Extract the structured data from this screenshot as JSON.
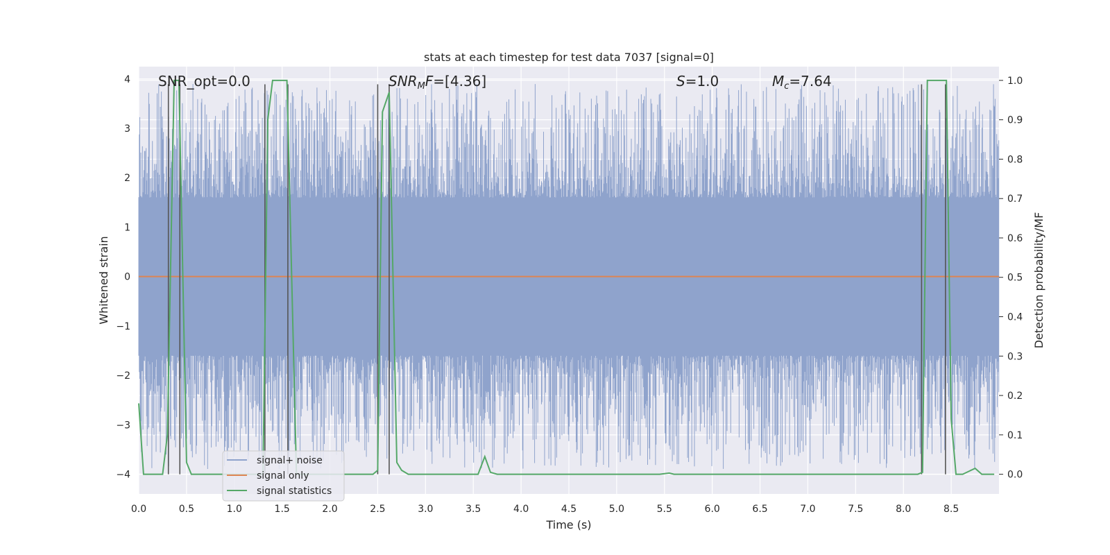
{
  "chart_data": {
    "type": "line",
    "title": "stats at each timestep for test data 7037 [signal=0]",
    "xlabel": "Time (s)",
    "ylabel_left": "Whitened strain",
    "ylabel_right": "Detection probability/MF",
    "xlim": [
      0.0,
      9.0
    ],
    "ylim_left": [
      -4.4,
      4.25
    ],
    "ylim_right": [
      -0.05,
      1.035
    ],
    "x_ticks": [
      0.0,
      0.5,
      1.0,
      1.5,
      2.0,
      2.5,
      3.0,
      3.5,
      4.0,
      4.5,
      5.0,
      5.5,
      6.0,
      6.5,
      7.0,
      7.5,
      8.0,
      8.5
    ],
    "x_tick_labels": [
      "0.0",
      "0.5",
      "1.0",
      "1.5",
      "2.0",
      "2.5",
      "3.0",
      "3.5",
      "4.0",
      "4.5",
      "5.0",
      "5.5",
      "6.0",
      "6.5",
      "7.0",
      "7.5",
      "8.0",
      "8.5"
    ],
    "y_left_ticks": [
      4,
      3,
      2,
      1,
      0,
      -1,
      -2,
      -3,
      -4
    ],
    "y_left_tick_labels": [
      "4",
      "3",
      "2",
      "1",
      "0",
      "−1",
      "−2",
      "−3",
      "−4"
    ],
    "y_right_ticks": [
      1.0,
      0.9,
      0.8,
      0.7,
      0.6,
      0.5,
      0.4,
      0.3,
      0.2,
      0.1,
      0.0
    ],
    "y_right_tick_labels": [
      "1.0",
      "0.9",
      "0.8",
      "0.7",
      "0.6",
      "0.5",
      "0.4",
      "0.3",
      "0.2",
      "0.1",
      "0.0"
    ],
    "grid": true,
    "legend_position": "lower-left",
    "annotations": {
      "snr_opt": "SNR_opt=0.0",
      "snr_mf_main": "SNR",
      "snr_mf_sub": "M",
      "snr_mf_rest": "F=[4.36]",
      "s_main": "S",
      "s_rest": "=1.0",
      "mc_main": "M",
      "mc_sub": "c",
      "mc_rest": "=7.64"
    },
    "series": [
      {
        "name": "signal+ noise",
        "axis": "left",
        "color": "#8fa3cc",
        "description_range": [
          -3.9,
          3.9
        ],
        "envelope_x": [
          0.0,
          9.0
        ],
        "envelope_y": [
          -1.6,
          1.6
        ]
      },
      {
        "name": "signal only",
        "axis": "left",
        "color": "#dd8452",
        "x": [
          0.0,
          9.0
        ],
        "y": [
          0.0,
          0.0
        ]
      },
      {
        "name": "signal statistics",
        "axis": "right",
        "color": "#55a868",
        "x": [
          0.0,
          0.05,
          0.25,
          0.3,
          0.37,
          0.42,
          0.5,
          0.55,
          1.25,
          1.3,
          1.35,
          1.4,
          1.55,
          1.65,
          2.45,
          2.5,
          2.55,
          2.62,
          2.7,
          2.75,
          2.82,
          2.9,
          3.55,
          3.62,
          3.68,
          3.75,
          5.45,
          5.55,
          5.6,
          8.15,
          8.2,
          8.25,
          8.3,
          8.45,
          8.5,
          8.55,
          8.62,
          8.75,
          8.82,
          8.95
        ],
        "y": [
          0.18,
          0.0,
          0.0,
          0.1,
          1.0,
          1.0,
          0.03,
          0.0,
          0.0,
          0.0,
          0.9,
          1.0,
          1.0,
          0.0,
          0.0,
          0.01,
          0.92,
          0.97,
          0.03,
          0.01,
          0.0,
          0.0,
          0.0,
          0.045,
          0.005,
          0.0,
          0.0,
          0.003,
          0.0,
          0.0,
          0.005,
          1.0,
          1.0,
          1.0,
          0.14,
          0.0,
          0.0,
          0.015,
          0.0,
          0.0
        ]
      }
    ],
    "vertical_lines_x": [
      0.31,
      0.43,
      1.32,
      1.56,
      2.5,
      2.62,
      8.19,
      8.44
    ],
    "vertical_line_color": "#555555"
  }
}
